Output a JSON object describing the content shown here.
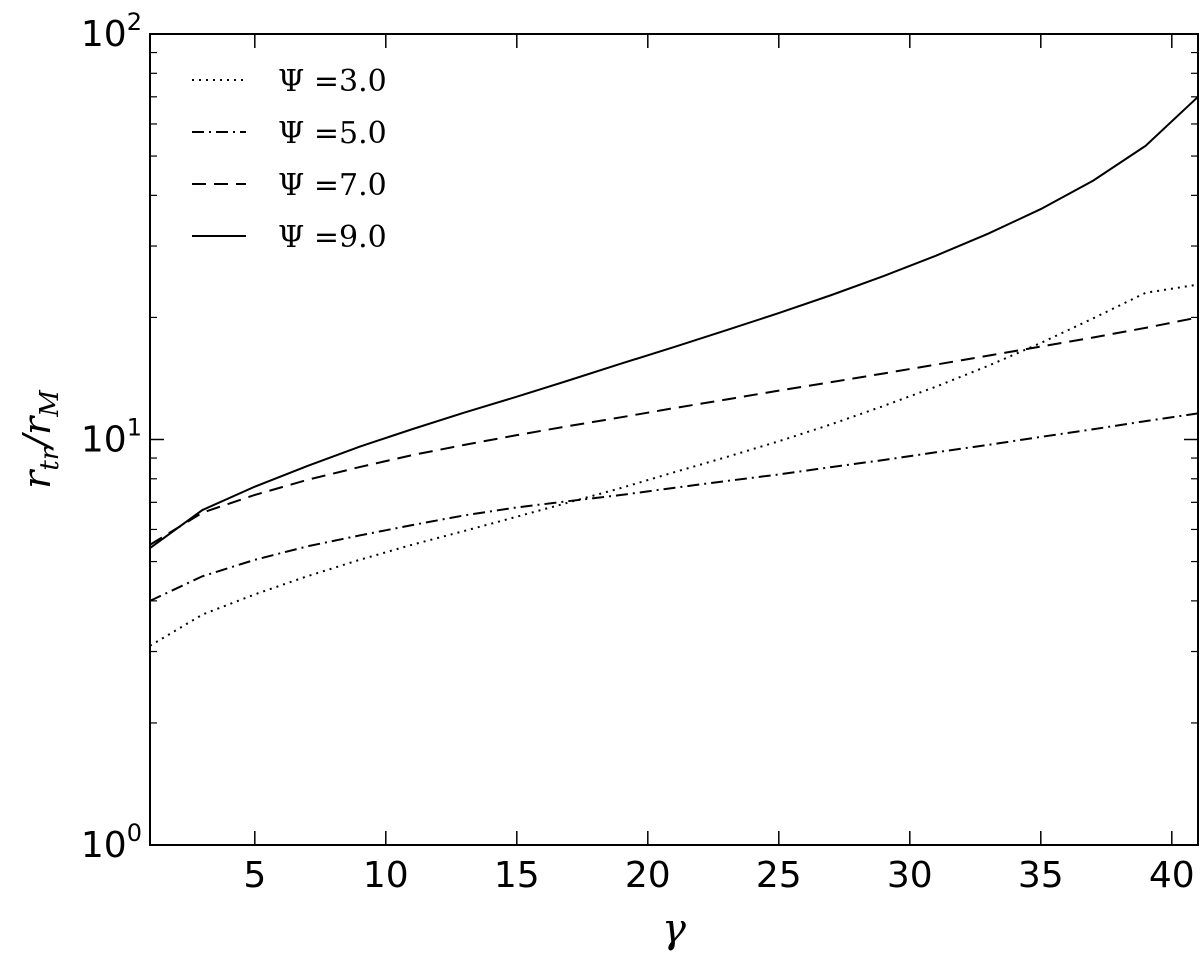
{
  "chart_data": {
    "type": "line",
    "title": "",
    "xlabel": "γ",
    "ylabel": {
      "main": "r",
      "sub1": "tr",
      "sep": "/",
      "main2": "r",
      "sub2": "M"
    },
    "xlim": [
      1,
      41
    ],
    "ylim": [
      1,
      100
    ],
    "yscale": "log",
    "grid": false,
    "legend_position": "top-left",
    "x_ticks": [
      5,
      10,
      15,
      20,
      25,
      30,
      35,
      40
    ],
    "x_tick_labels": [
      "5",
      "10",
      "15",
      "20",
      "25",
      "30",
      "35",
      "40"
    ],
    "y_ticks": [
      {
        "value": 1,
        "base": "10",
        "exp": "0"
      },
      {
        "value": 10,
        "base": "10",
        "exp": "1"
      },
      {
        "value": 100,
        "base": "10",
        "exp": "2"
      }
    ],
    "x": [
      1,
      3,
      5,
      7,
      9,
      11,
      13,
      15,
      17,
      19,
      21,
      23,
      25,
      27,
      29,
      31,
      33,
      35,
      37,
      39,
      41
    ],
    "series": [
      {
        "name": "Ψ = 3.0",
        "legend_label": "Ψ =3.0",
        "dash": "dotted",
        "values": [
          3.1,
          3.7,
          4.15,
          4.6,
          5.05,
          5.5,
          5.95,
          6.45,
          7.0,
          7.6,
          8.3,
          9.05,
          9.9,
          10.9,
          12.1,
          13.5,
          15.2,
          17.3,
          19.9,
          23.0,
          24.1
        ]
      },
      {
        "name": "Ψ = 5.0",
        "legend_label": "Ψ =5.0",
        "dash": "dashdot",
        "values": [
          4.0,
          4.6,
          5.05,
          5.45,
          5.8,
          6.15,
          6.5,
          6.8,
          7.05,
          7.3,
          7.6,
          7.9,
          8.2,
          8.55,
          8.9,
          9.3,
          9.7,
          10.15,
          10.6,
          11.1,
          11.6
        ]
      },
      {
        "name": "Ψ = 7.0",
        "legend_label": "Ψ =7.0",
        "dash": "dashed",
        "values": [
          5.5,
          6.6,
          7.3,
          7.95,
          8.55,
          9.15,
          9.7,
          10.25,
          10.8,
          11.35,
          11.95,
          12.55,
          13.2,
          13.85,
          14.55,
          15.3,
          16.1,
          16.95,
          17.85,
          18.85,
          20.0
        ]
      },
      {
        "name": "Ψ = 9.0",
        "legend_label": "Ψ =9.0",
        "dash": "solid",
        "values": [
          5.4,
          6.7,
          7.65,
          8.6,
          9.6,
          10.6,
          11.65,
          12.75,
          14.0,
          15.4,
          16.9,
          18.6,
          20.5,
          22.7,
          25.3,
          28.4,
          32.2,
          37.0,
          43.5,
          53.0,
          70.0
        ]
      }
    ]
  }
}
